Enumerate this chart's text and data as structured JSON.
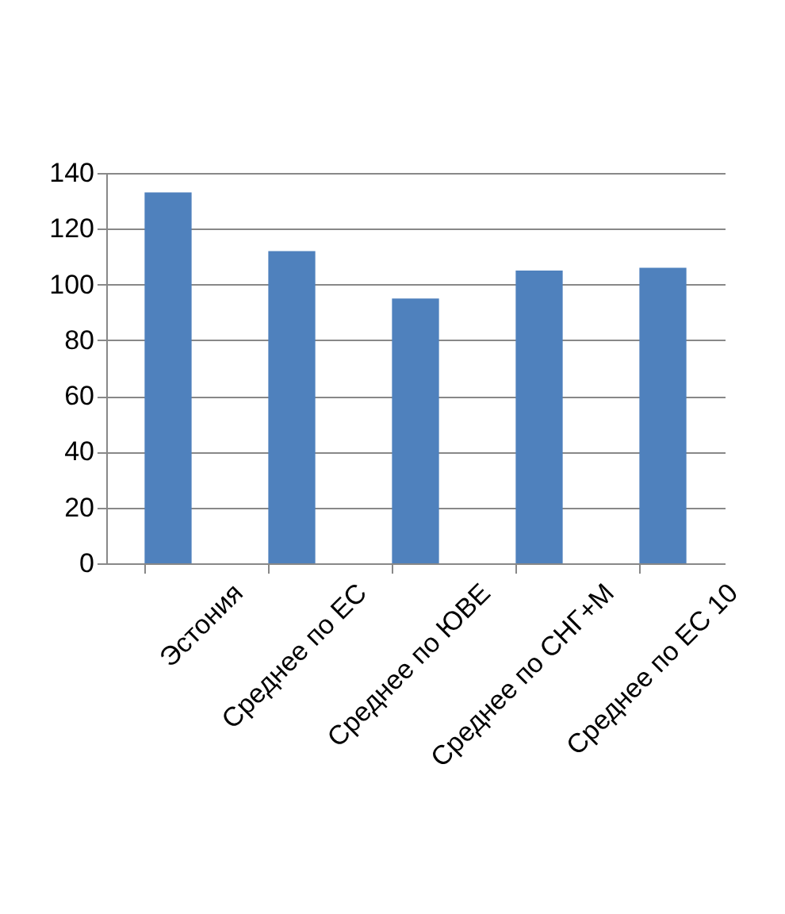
{
  "chart_data": {
    "type": "bar",
    "categories": [
      "Эстония",
      "Среднее по ЕС",
      "Среднее по ЮВЕ",
      "Среднее по СНГ+М",
      "Среднее по ЕС 10"
    ],
    "values": [
      133,
      112,
      95,
      105,
      106
    ],
    "color": "#4f81bd",
    "ylim": [
      0,
      140
    ],
    "yticks": [
      0,
      20,
      40,
      60,
      80,
      100,
      120,
      140
    ],
    "grid": "y"
  }
}
